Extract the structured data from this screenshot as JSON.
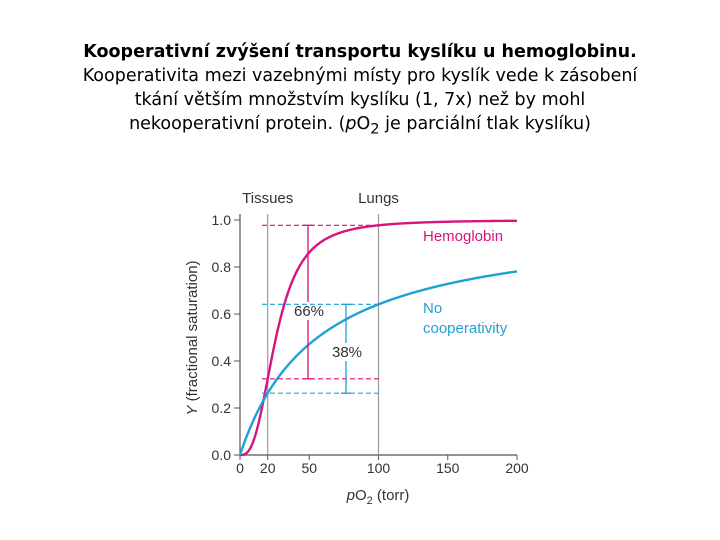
{
  "caption": {
    "title": "Kooperativní zvýšení transportu kyslíku u hemoglobinu.",
    "line2": "Kooperativita mezi vazebnými místy pro kyslík vede k zásobení",
    "line3": "tkání větším množstvím kyslíku (1, 7x) než by mohl",
    "line4_pre": "nekooperativní protein. (",
    "line4_p": "p",
    "line4_o": "O",
    "line4_sub": "2",
    "line4_post": " je parciální tlak kyslíku)"
  },
  "chart_data": {
    "type": "line",
    "xlabel_p": "p",
    "xlabel_o": "O",
    "xlabel_sub": "2",
    "xlabel_rest": " (torr)",
    "ylabel_y": "Y",
    "ylabel_rest": " (fractional saturation)",
    "xlim": [
      0,
      200
    ],
    "ylim": [
      0,
      1.0
    ],
    "xticks": [
      0,
      20,
      50,
      100,
      150,
      200
    ],
    "yticks": [
      "0.0",
      "0.2",
      "0.4",
      "0.6",
      "0.8",
      "1.0"
    ],
    "grid": false,
    "markers": [
      {
        "label": "Tissues",
        "x": 20
      },
      {
        "label": "Lungs",
        "x": 100
      }
    ],
    "series": [
      {
        "name": "Hemoglobin",
        "color": "#d6147d",
        "model": "hill",
        "p50": 26,
        "n": 2.8
      },
      {
        "name_line1": "No",
        "name_line2": "cooperativity",
        "color": "#1ea1d3",
        "model": "hyperbolic",
        "p50": 56,
        "n": 1
      }
    ],
    "annotations": [
      {
        "text": "66%",
        "series": 0,
        "from_x": 20,
        "to_x": 100
      },
      {
        "text": "38%",
        "series": 1,
        "from_x": 20,
        "to_x": 100
      }
    ]
  }
}
